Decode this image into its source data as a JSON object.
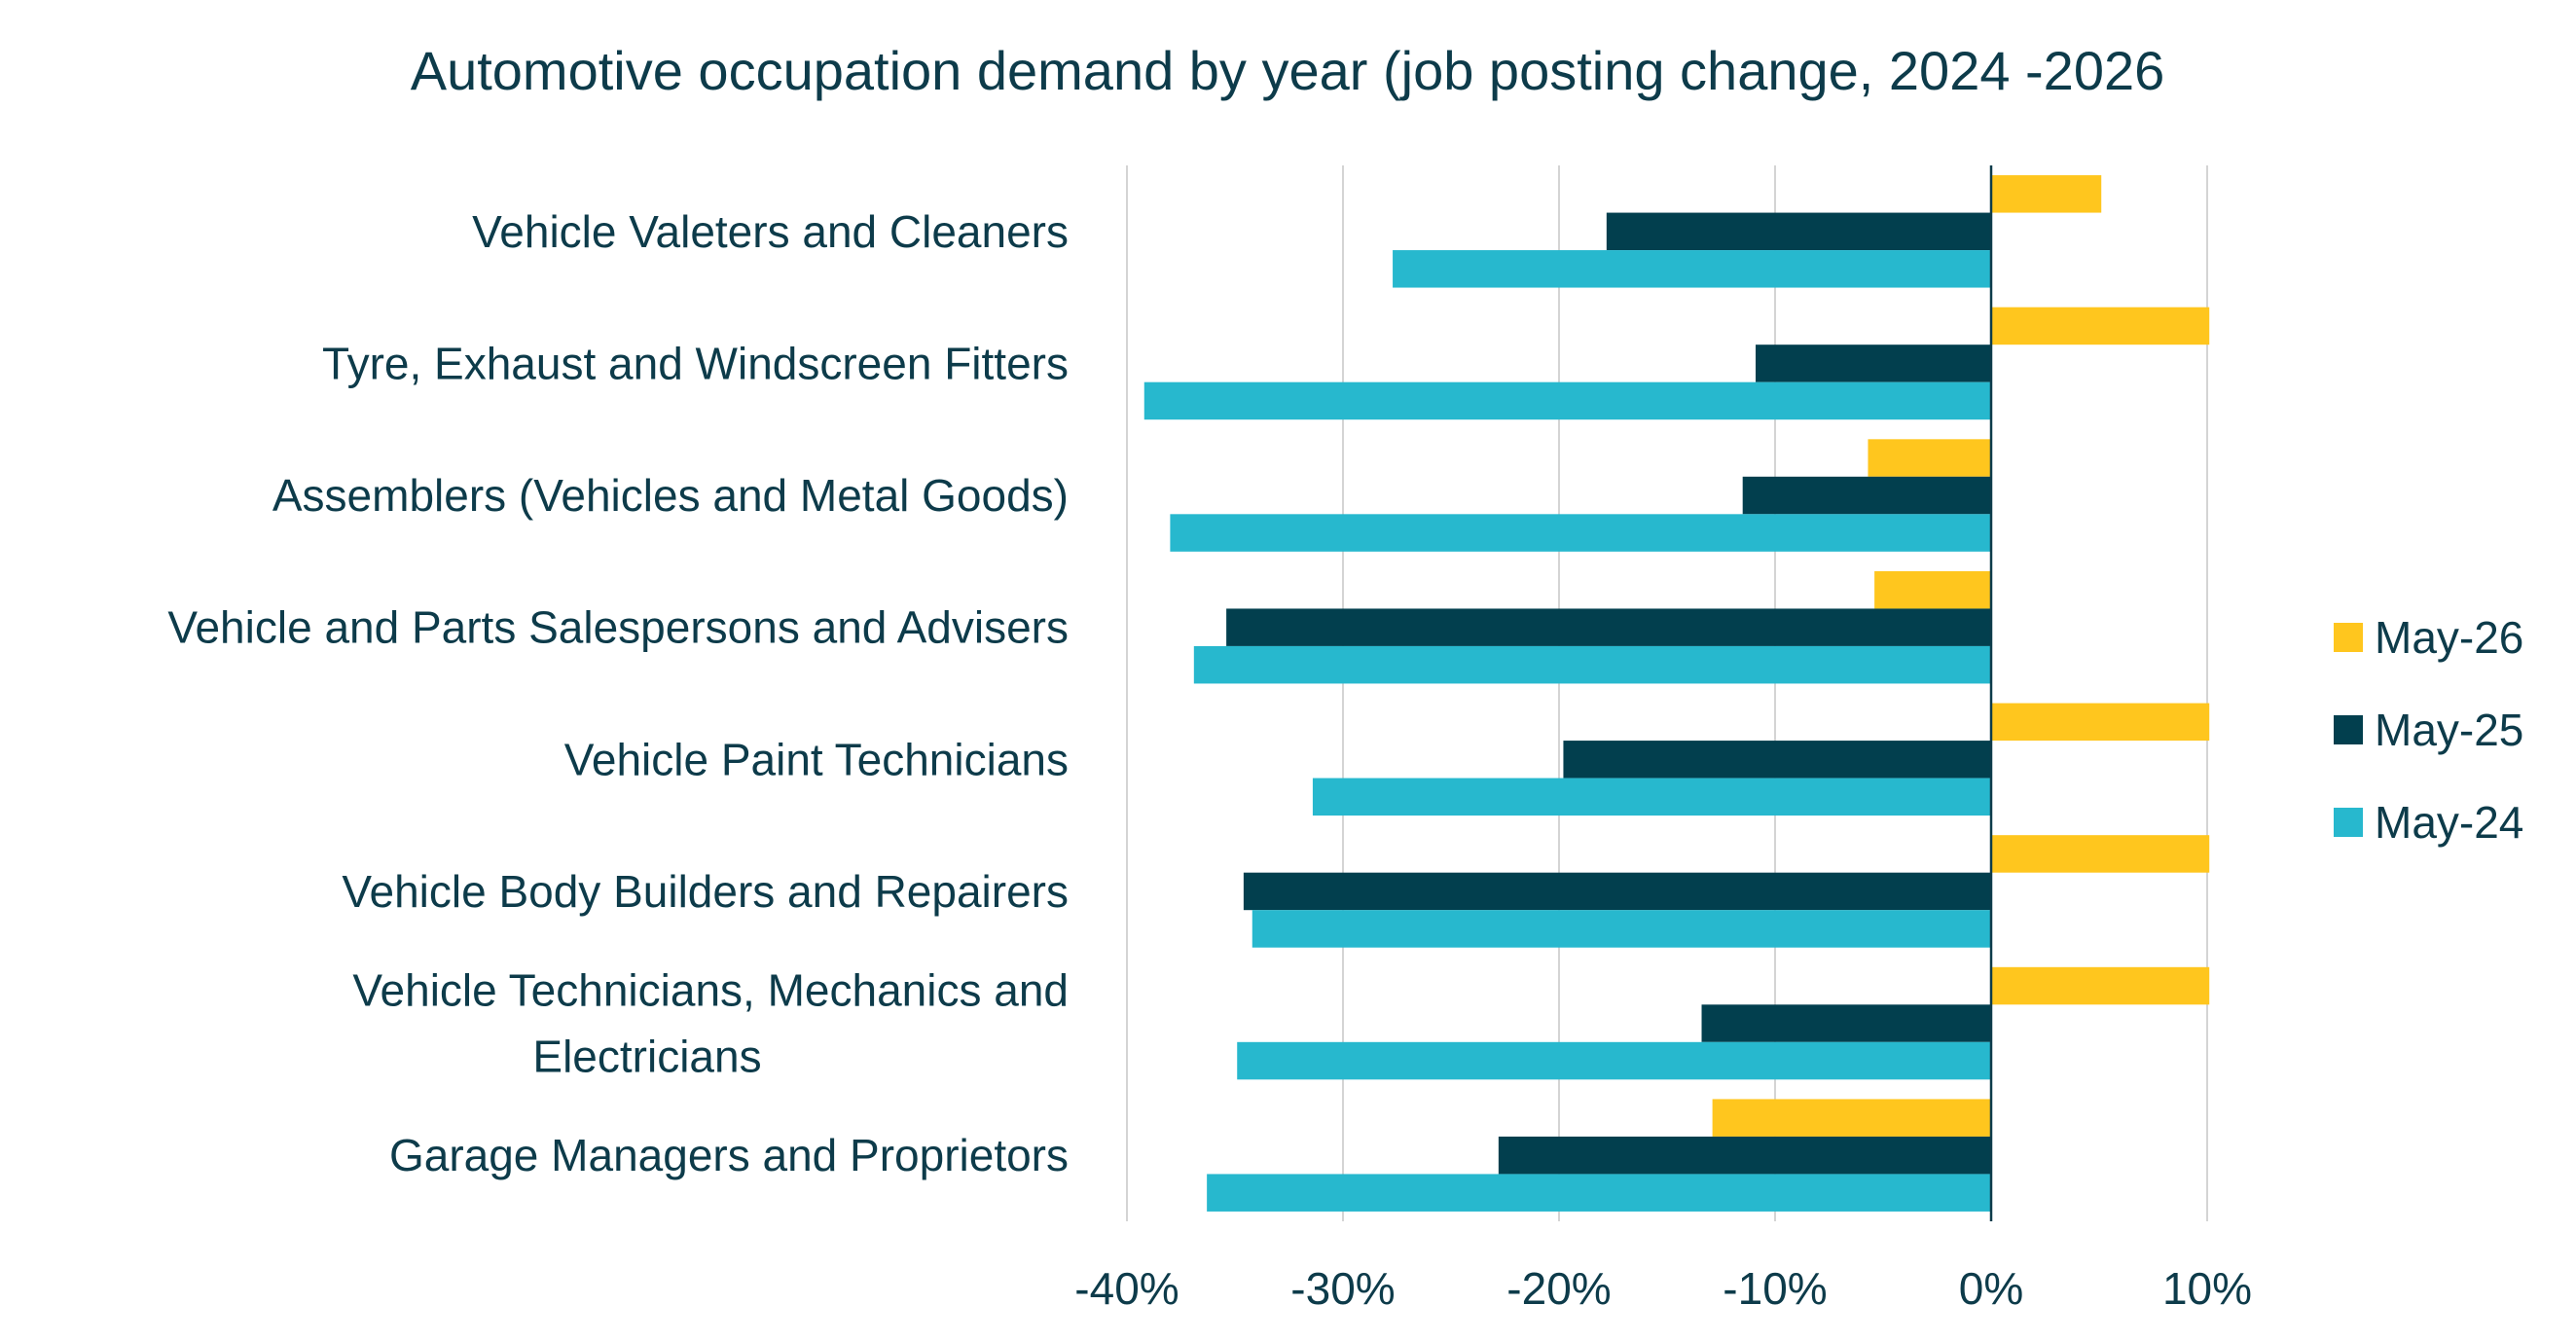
{
  "chart_data": {
    "type": "bar",
    "orientation": "horizontal",
    "title": "Automotive occupation demand by year (job posting change, 2024 -2026",
    "xlabel": "",
    "ylabel": "",
    "xlim": [
      -0.4,
      0.1
    ],
    "x_ticks": [
      {
        "value": -0.4,
        "label": "-40%"
      },
      {
        "value": -0.3,
        "label": "-30%"
      },
      {
        "value": -0.2,
        "label": "-20%"
      },
      {
        "value": -0.1,
        "label": "-10%"
      },
      {
        "value": 0.0,
        "label": "0%"
      },
      {
        "value": 0.1,
        "label": "10%"
      }
    ],
    "grid": "vertical",
    "legend": "right",
    "categories": [
      {
        "label_lines": [
          "Vehicle Valeters and Cleaners"
        ]
      },
      {
        "label_lines": [
          "Tyre, Exhaust and Windscreen Fitters"
        ]
      },
      {
        "label_lines": [
          "Assemblers (Vehicles and Metal Goods)"
        ]
      },
      {
        "label_lines": [
          "Vehicle and Parts Salespersons and Advisers"
        ]
      },
      {
        "label_lines": [
          "Vehicle Paint Technicians"
        ]
      },
      {
        "label_lines": [
          "Vehicle Body Builders and Repairers"
        ]
      },
      {
        "label_lines": [
          "Vehicle Technicians, Mechanics and",
          "Electricians"
        ]
      },
      {
        "label_lines": [
          "Garage Managers and Proprietors"
        ]
      }
    ],
    "series": [
      {
        "name": "May-26",
        "color": "#FFC61E",
        "values": [
          0.051,
          0.101,
          -0.057,
          -0.054,
          0.101,
          0.101,
          0.101,
          -0.129
        ]
      },
      {
        "name": "May-25",
        "color": "#023F4E",
        "values": [
          -0.178,
          -0.109,
          -0.115,
          -0.354,
          -0.198,
          -0.346,
          -0.134,
          -0.228
        ]
      },
      {
        "name": "May-24",
        "color": "#27B8CE",
        "values": [
          -0.277,
          -0.392,
          -0.38,
          -0.369,
          -0.314,
          -0.342,
          -0.349,
          -0.363
        ]
      }
    ],
    "legend_order": [
      0,
      1,
      2
    ]
  }
}
